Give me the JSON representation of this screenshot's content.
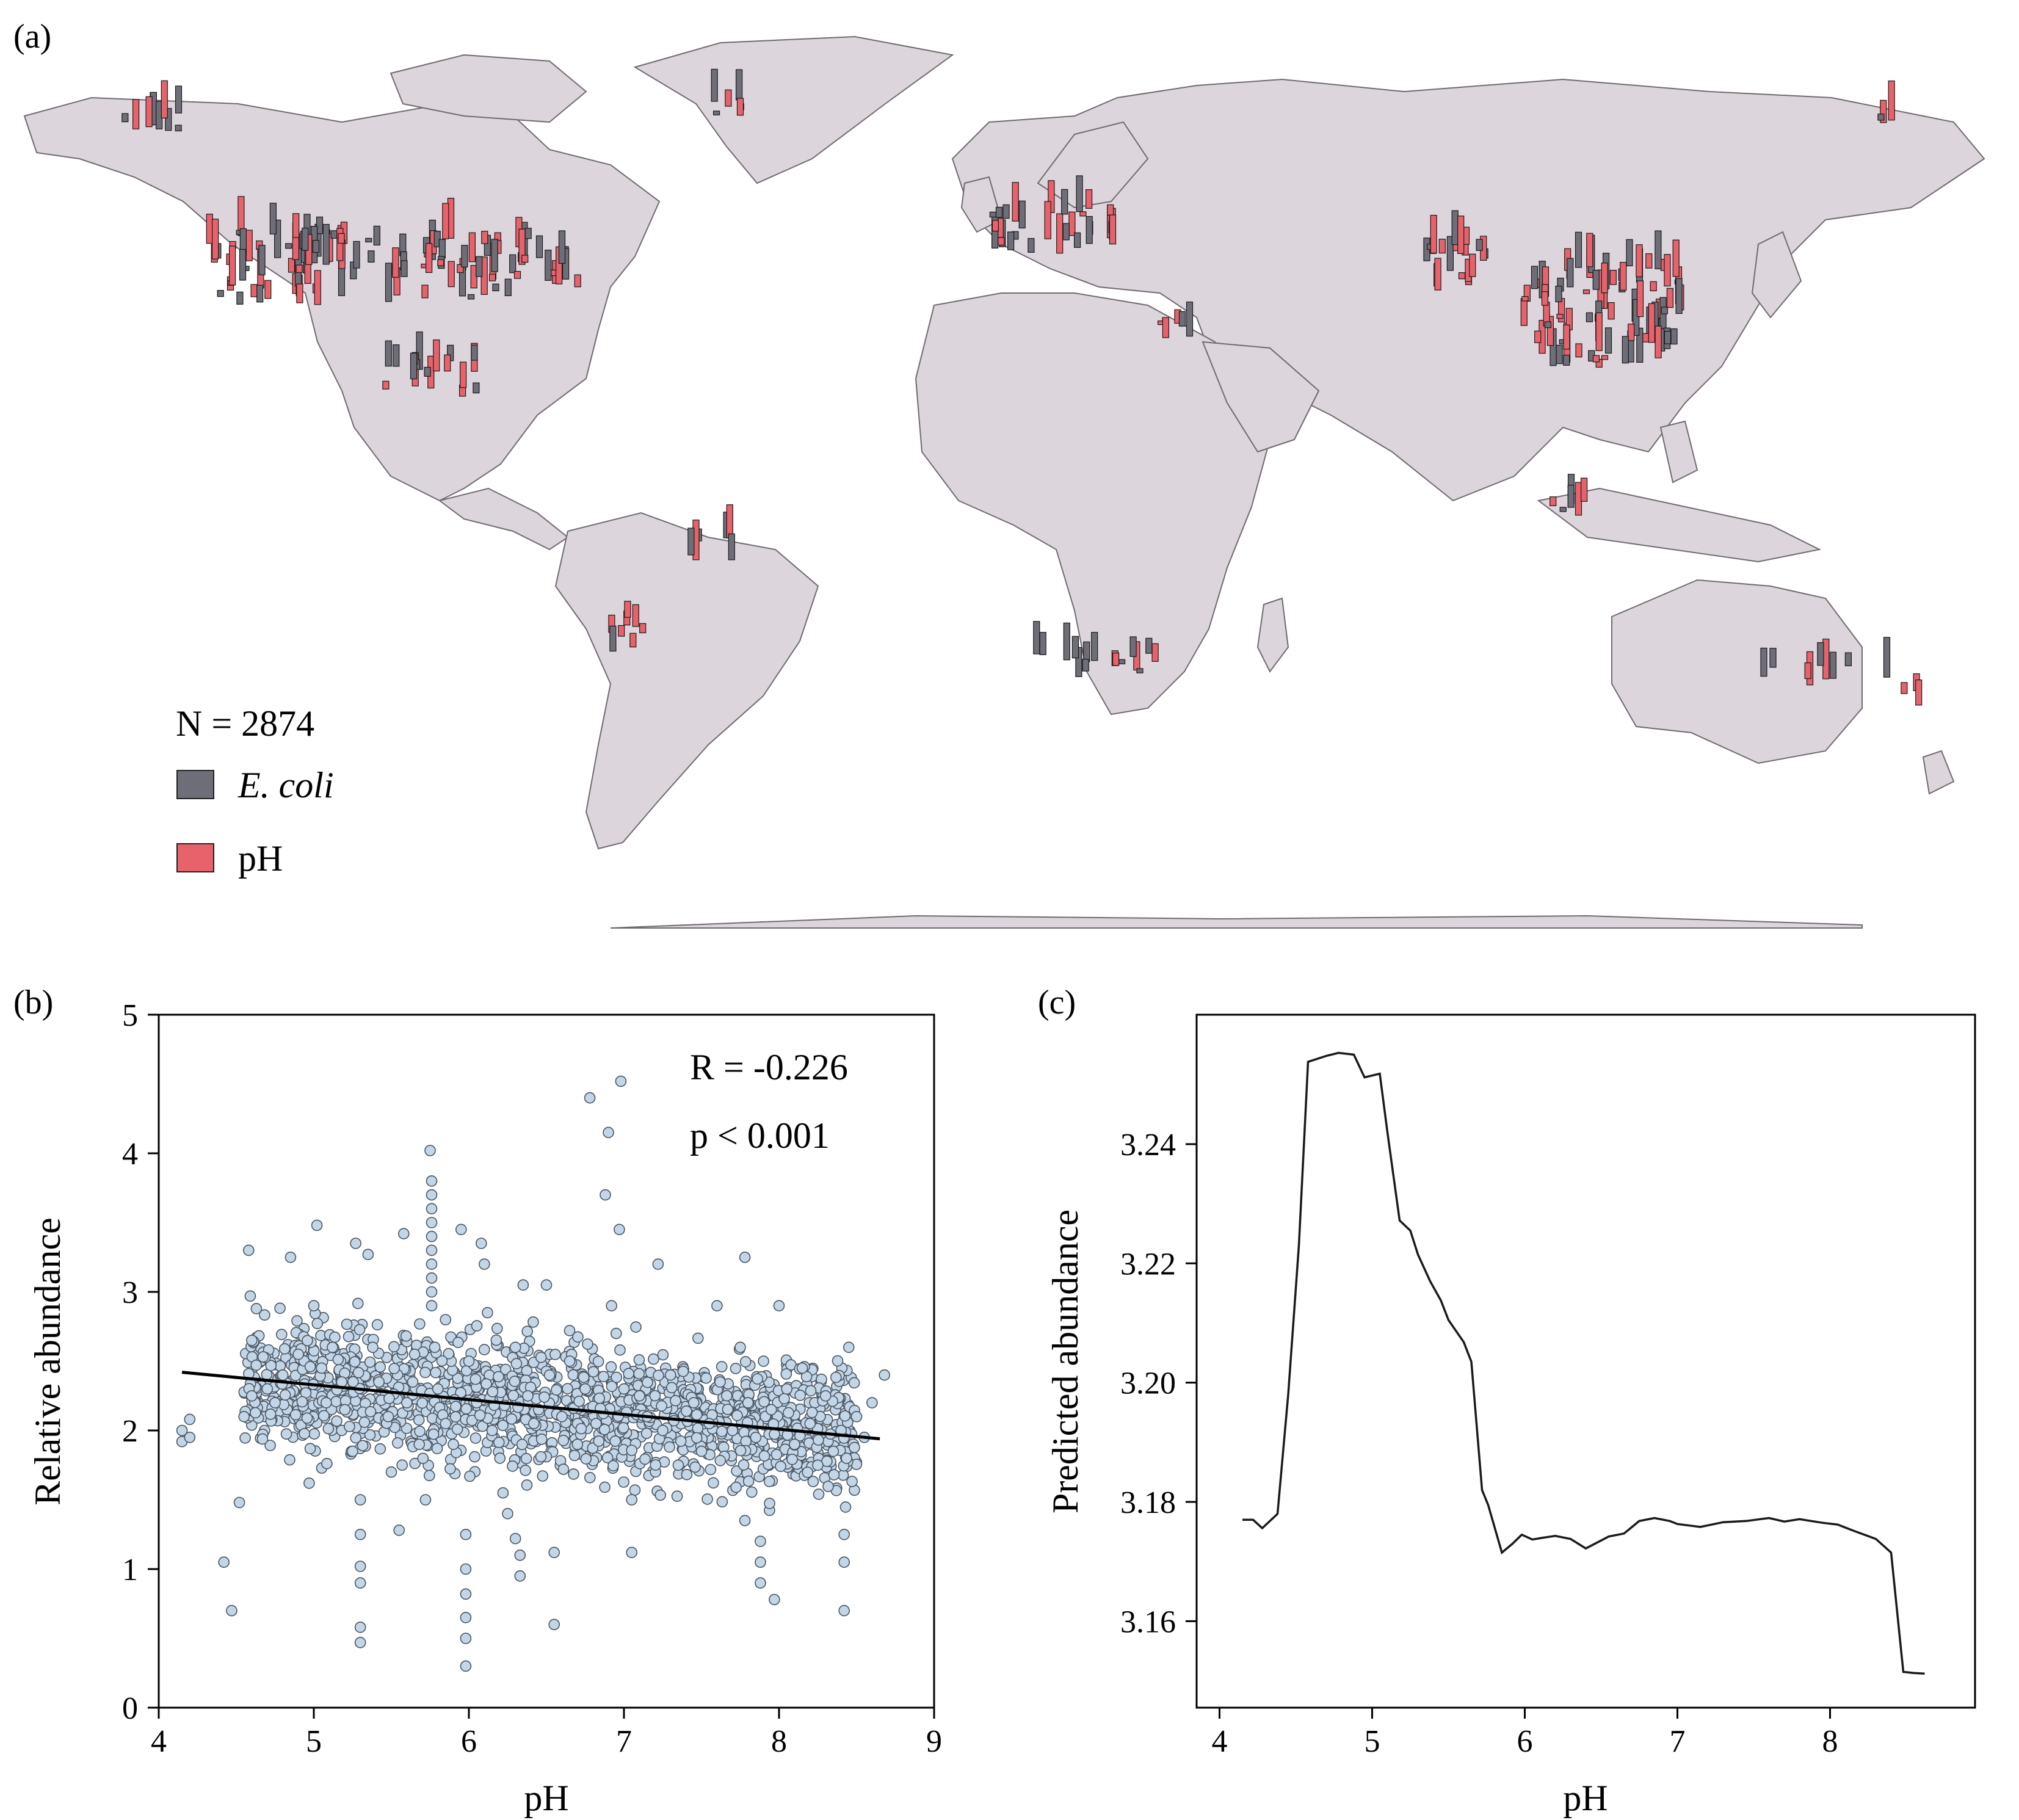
{
  "colors": {
    "land": "#ddd5dc",
    "land_border": "#6f6a70",
    "ecoli_bar": "#6e6e78",
    "ph_bar": "#e8626c",
    "point_fill": "#c3d6e8",
    "point_stroke": "#4a5560"
  },
  "panel_a": {
    "label": "(a)",
    "legend": {
      "n_text": "N = 2874",
      "ecoli_label": "E. coli",
      "ph_label": "pH"
    }
  },
  "panel_b": {
    "label": "(b)",
    "stat_r": "R = -0.226",
    "stat_p": "p < 0.001"
  },
  "panel_c": {
    "label": "(c)"
  },
  "chart_data": [
    {
      "type": "scatter",
      "panel": "b",
      "xlabel": "pH",
      "ylabel": "Relative abundance",
      "xlim": [
        4,
        9
      ],
      "ylim": [
        0,
        5
      ],
      "xticks": [
        "4",
        "5",
        "6",
        "7",
        "8",
        "9"
      ],
      "yticks": [
        "0",
        "1",
        "2",
        "3",
        "4",
        "5"
      ],
      "fit_line": {
        "x": [
          4.15,
          8.65
        ],
        "y": [
          2.42,
          1.94
        ]
      },
      "points": [
        [
          4.15,
          1.92
        ],
        [
          4.15,
          2.0
        ],
        [
          4.2,
          1.95
        ],
        [
          4.2,
          2.08
        ],
        [
          4.42,
          1.05
        ],
        [
          4.47,
          0.7
        ],
        [
          4.52,
          1.48
        ],
        [
          4.55,
          2.1
        ],
        [
          4.58,
          3.3
        ],
        [
          4.6,
          2.65
        ],
        [
          4.6,
          2.25
        ],
        [
          4.7,
          2.3
        ],
        [
          4.75,
          2.2
        ],
        [
          4.8,
          2.4
        ],
        [
          4.85,
          3.25
        ],
        [
          4.9,
          2.55
        ],
        [
          4.97,
          1.62
        ],
        [
          5.0,
          2.9
        ],
        [
          5.02,
          3.48
        ],
        [
          5.05,
          2.45
        ],
        [
          5.08,
          2.2
        ],
        [
          5.12,
          2.6
        ],
        [
          5.18,
          2.35
        ],
        [
          5.2,
          2.15
        ],
        [
          5.25,
          1.85
        ],
        [
          5.27,
          3.35
        ],
        [
          5.3,
          1.5
        ],
        [
          5.3,
          1.25
        ],
        [
          5.3,
          1.02
        ],
        [
          5.3,
          0.9
        ],
        [
          5.3,
          0.58
        ],
        [
          5.3,
          0.47
        ],
        [
          5.35,
          3.27
        ],
        [
          5.38,
          2.6
        ],
        [
          5.42,
          2.35
        ],
        [
          5.48,
          2.1
        ],
        [
          5.5,
          1.7
        ],
        [
          5.55,
          1.28
        ],
        [
          5.58,
          3.42
        ],
        [
          5.6,
          2.2
        ],
        [
          5.65,
          2.55
        ],
        [
          5.68,
          1.9
        ],
        [
          5.72,
          1.5
        ],
        [
          5.75,
          4.02
        ],
        [
          5.76,
          3.8
        ],
        [
          5.76,
          3.7
        ],
        [
          5.76,
          3.6
        ],
        [
          5.76,
          3.5
        ],
        [
          5.76,
          3.4
        ],
        [
          5.76,
          3.3
        ],
        [
          5.76,
          3.2
        ],
        [
          5.76,
          3.1
        ],
        [
          5.76,
          3.0
        ],
        [
          5.76,
          2.9
        ],
        [
          5.78,
          2.6
        ],
        [
          5.8,
          2.3
        ],
        [
          5.85,
          2.05
        ],
        [
          5.9,
          1.9
        ],
        [
          5.95,
          3.45
        ],
        [
          5.98,
          1.25
        ],
        [
          5.98,
          1.0
        ],
        [
          5.98,
          0.82
        ],
        [
          5.98,
          0.65
        ],
        [
          5.98,
          0.5
        ],
        [
          5.98,
          0.3
        ],
        [
          6.0,
          2.5
        ],
        [
          6.05,
          2.2
        ],
        [
          6.08,
          3.35
        ],
        [
          6.1,
          3.2
        ],
        [
          6.12,
          2.85
        ],
        [
          6.15,
          2.0
        ],
        [
          6.2,
          1.8
        ],
        [
          6.22,
          1.55
        ],
        [
          6.25,
          1.4
        ],
        [
          6.3,
          2.6
        ],
        [
          6.3,
          1.22
        ],
        [
          6.33,
          1.1
        ],
        [
          6.33,
          0.95
        ],
        [
          6.35,
          3.05
        ],
        [
          6.38,
          2.25
        ],
        [
          6.45,
          2.15
        ],
        [
          6.5,
          3.05
        ],
        [
          6.52,
          2.4
        ],
        [
          6.55,
          1.12
        ],
        [
          6.55,
          0.6
        ],
        [
          6.6,
          2.1
        ],
        [
          6.65,
          2.5
        ],
        [
          6.7,
          1.9
        ],
        [
          6.75,
          2.3
        ],
        [
          6.78,
          4.4
        ],
        [
          6.82,
          2.05
        ],
        [
          6.88,
          3.7
        ],
        [
          6.9,
          4.15
        ],
        [
          6.92,
          2.9
        ],
        [
          6.95,
          2.7
        ],
        [
          6.97,
          3.45
        ],
        [
          6.98,
          4.52
        ],
        [
          7.0,
          2.3
        ],
        [
          7.05,
          1.12
        ],
        [
          7.05,
          1.5
        ],
        [
          7.1,
          2.25
        ],
        [
          7.15,
          2.1
        ],
        [
          7.22,
          3.2
        ],
        [
          7.25,
          2.0
        ],
        [
          7.3,
          2.4
        ],
        [
          7.35,
          1.75
        ],
        [
          7.45,
          2.2
        ],
        [
          7.5,
          1.85
        ],
        [
          7.55,
          2.05
        ],
        [
          7.6,
          2.9
        ],
        [
          7.62,
          2.35
        ],
        [
          7.7,
          2.0
        ],
        [
          7.75,
          2.6
        ],
        [
          7.78,
          3.25
        ],
        [
          7.78,
          1.35
        ],
        [
          7.8,
          2.2
        ],
        [
          7.85,
          1.95
        ],
        [
          7.88,
          1.2
        ],
        [
          7.88,
          1.05
        ],
        [
          7.88,
          0.9
        ],
        [
          7.9,
          2.5
        ],
        [
          7.95,
          2.15
        ],
        [
          7.97,
          0.78
        ],
        [
          8.0,
          2.9
        ],
        [
          8.05,
          2.3
        ],
        [
          8.1,
          1.9
        ],
        [
          8.15,
          2.45
        ],
        [
          8.2,
          2.05
        ],
        [
          8.25,
          1.75
        ],
        [
          8.3,
          2.25
        ],
        [
          8.35,
          1.85
        ],
        [
          8.4,
          2.0
        ],
        [
          8.42,
          1.25
        ],
        [
          8.42,
          1.05
        ],
        [
          8.42,
          0.7
        ],
        [
          8.45,
          2.6
        ],
        [
          8.5,
          2.1
        ],
        [
          8.55,
          1.95
        ],
        [
          8.6,
          2.2
        ],
        [
          8.68,
          2.4
        ]
      ]
    },
    {
      "type": "line",
      "panel": "c",
      "xlabel": "pH",
      "ylabel": "Predicted  abundance",
      "xlim": [
        3.85,
        8.95
      ],
      "ylim": [
        3.1455,
        3.2617
      ],
      "xticks": [
        "4",
        "5",
        "6",
        "7",
        "8"
      ],
      "yticks": [
        "3.16",
        "3.18",
        "3.20",
        "3.22",
        "3.24"
      ],
      "x": [
        4.15,
        4.22,
        4.28,
        4.38,
        4.45,
        4.52,
        4.58,
        4.7,
        4.78,
        4.88,
        4.95,
        5.05,
        5.1,
        5.18,
        5.25,
        5.3,
        5.38,
        5.45,
        5.5,
        5.6,
        5.65,
        5.72,
        5.76,
        5.85,
        5.92,
        5.98,
        6.05,
        6.12,
        6.2,
        6.3,
        6.4,
        6.55,
        6.65,
        6.75,
        6.85,
        6.95,
        7.0,
        7.15,
        7.3,
        7.45,
        7.6,
        7.7,
        7.8,
        7.95,
        8.05,
        8.15,
        8.3,
        8.4,
        8.48,
        8.55,
        8.62
      ],
      "y": [
        3.177,
        3.177,
        3.1756,
        3.178,
        3.198,
        3.223,
        3.2538,
        3.2548,
        3.2553,
        3.255,
        3.2512,
        3.2518,
        3.242,
        3.2272,
        3.2255,
        3.2215,
        3.217,
        3.2138,
        3.2105,
        3.2068,
        3.2035,
        3.182,
        3.1795,
        3.1715,
        3.173,
        3.1745,
        3.1737,
        3.174,
        3.1743,
        3.1738,
        3.1722,
        3.1742,
        3.1747,
        3.1768,
        3.1773,
        3.1768,
        3.1763,
        3.1758,
        3.1766,
        3.1768,
        3.1773,
        3.1767,
        3.1771,
        3.1765,
        3.1762,
        3.1752,
        3.1738,
        3.1715,
        3.1515,
        3.1513,
        3.1512
      ]
    }
  ]
}
